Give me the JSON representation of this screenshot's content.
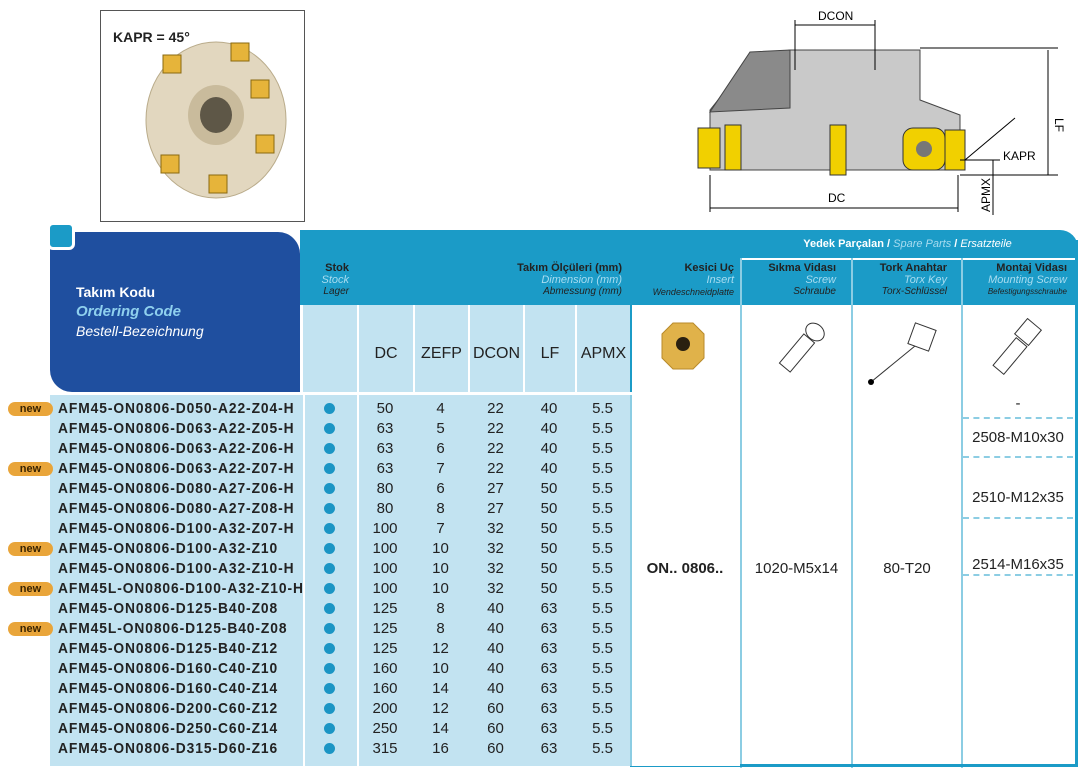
{
  "photo": {
    "kapr_label": "KAPR = 45°"
  },
  "diagram": {
    "labels": {
      "dcon": "DCON",
      "lf": "LF",
      "kapr": "KAPR",
      "dc": "DC",
      "apmx": "APMX"
    }
  },
  "header": {
    "code": {
      "tr": "Takım Kodu",
      "en": "Ordering Code",
      "de": "Bestell-Bezeichnung"
    },
    "stock": {
      "tr": "Stok",
      "en": "Stock",
      "de": "Lager"
    },
    "dimensions": {
      "tr": "Takım Ölçüleri (mm)",
      "en": "Dimension (mm)",
      "de": "Abmessung (mm)"
    },
    "insert": {
      "tr": "Kesici Uç",
      "en": "Insert",
      "de": "Wendeschneidplatte"
    },
    "spare": {
      "tr": "Yedek Parçalan",
      "en": "Spare Parts",
      "de": "Ersatzteile",
      "sep": "/"
    },
    "screw": {
      "tr": "Sıkma Vidası",
      "en": "Screw",
      "de": "Schraube"
    },
    "key": {
      "tr": "Tork Anahtar",
      "en": "Torx Key",
      "de": "Torx-Schlüssel"
    },
    "mount": {
      "tr": "Montaj Vidası",
      "en": "Mounting Screw",
      "de": "Befestigungsschraube"
    },
    "dim_cols": [
      "DC",
      "ZEFP",
      "DCON",
      "LF",
      "APMX"
    ]
  },
  "new_badge": "new",
  "rows": [
    {
      "code": "AFM45-ON0806-D050-A22-Z04-H",
      "new": true,
      "dc": "50",
      "zefp": "4",
      "dcon": "22",
      "lf": "40",
      "apmx": "5.5"
    },
    {
      "code": "AFM45-ON0806-D063-A22-Z05-H",
      "new": false,
      "dc": "63",
      "zefp": "5",
      "dcon": "22",
      "lf": "40",
      "apmx": "5.5"
    },
    {
      "code": "AFM45-ON0806-D063-A22-Z06-H",
      "new": false,
      "dc": "63",
      "zefp": "6",
      "dcon": "22",
      "lf": "40",
      "apmx": "5.5"
    },
    {
      "code": "AFM45-ON0806-D063-A22-Z07-H",
      "new": true,
      "dc": "63",
      "zefp": "7",
      "dcon": "22",
      "lf": "40",
      "apmx": "5.5"
    },
    {
      "code": "AFM45-ON0806-D080-A27-Z06-H",
      "new": false,
      "dc": "80",
      "zefp": "6",
      "dcon": "27",
      "lf": "50",
      "apmx": "5.5"
    },
    {
      "code": "AFM45-ON0806-D080-A27-Z08-H",
      "new": false,
      "dc": "80",
      "zefp": "8",
      "dcon": "27",
      "lf": "50",
      "apmx": "5.5"
    },
    {
      "code": "AFM45-ON0806-D100-A32-Z07-H",
      "new": false,
      "dc": "100",
      "zefp": "7",
      "dcon": "32",
      "lf": "50",
      "apmx": "5.5"
    },
    {
      "code": "AFM45-ON0806-D100-A32-Z10",
      "new": true,
      "dc": "100",
      "zefp": "10",
      "dcon": "32",
      "lf": "50",
      "apmx": "5.5"
    },
    {
      "code": "AFM45-ON0806-D100-A32-Z10-H",
      "new": false,
      "dc": "100",
      "zefp": "10",
      "dcon": "32",
      "lf": "50",
      "apmx": "5.5"
    },
    {
      "code": "AFM45L-ON0806-D100-A32-Z10-H",
      "new": true,
      "dc": "100",
      "zefp": "10",
      "dcon": "32",
      "lf": "50",
      "apmx": "5.5"
    },
    {
      "code": "AFM45-ON0806-D125-B40-Z08",
      "new": false,
      "dc": "125",
      "zefp": "8",
      "dcon": "40",
      "lf": "63",
      "apmx": "5.5"
    },
    {
      "code": "AFM45L-ON0806-D125-B40-Z08",
      "new": true,
      "dc": "125",
      "zefp": "8",
      "dcon": "40",
      "lf": "63",
      "apmx": "5.5"
    },
    {
      "code": "AFM45-ON0806-D125-B40-Z12",
      "new": false,
      "dc": "125",
      "zefp": "12",
      "dcon": "40",
      "lf": "63",
      "apmx": "5.5"
    },
    {
      "code": "AFM45-ON0806-D160-C40-Z10",
      "new": false,
      "dc": "160",
      "zefp": "10",
      "dcon": "40",
      "lf": "63",
      "apmx": "5.5"
    },
    {
      "code": "AFM45-ON0806-D160-C40-Z14",
      "new": false,
      "dc": "160",
      "zefp": "14",
      "dcon": "40",
      "lf": "63",
      "apmx": "5.5"
    },
    {
      "code": "AFM45-ON0806-D200-C60-Z12",
      "new": false,
      "dc": "200",
      "zefp": "12",
      "dcon": "60",
      "lf": "63",
      "apmx": "5.5"
    },
    {
      "code": "AFM45-ON0806-D250-C60-Z14",
      "new": false,
      "dc": "250",
      "zefp": "14",
      "dcon": "60",
      "lf": "63",
      "apmx": "5.5"
    },
    {
      "code": "AFM45-ON0806-D315-D60-Z16",
      "new": false,
      "dc": "315",
      "zefp": "16",
      "dcon": "60",
      "lf": "63",
      "apmx": "5.5"
    }
  ],
  "insert_value": "ON.. 0806..",
  "screw_value": "1020-M5x14",
  "key_value": "80-T20",
  "mount_values": [
    "-",
    "2508-M10x30",
    "2510-M12x35",
    "2514-M16x35"
  ],
  "colors": {
    "header": "#1b9bc7",
    "title_block": "#1f4f9f",
    "light": "#c2e3f1",
    "badge": "#e9a53a"
  }
}
